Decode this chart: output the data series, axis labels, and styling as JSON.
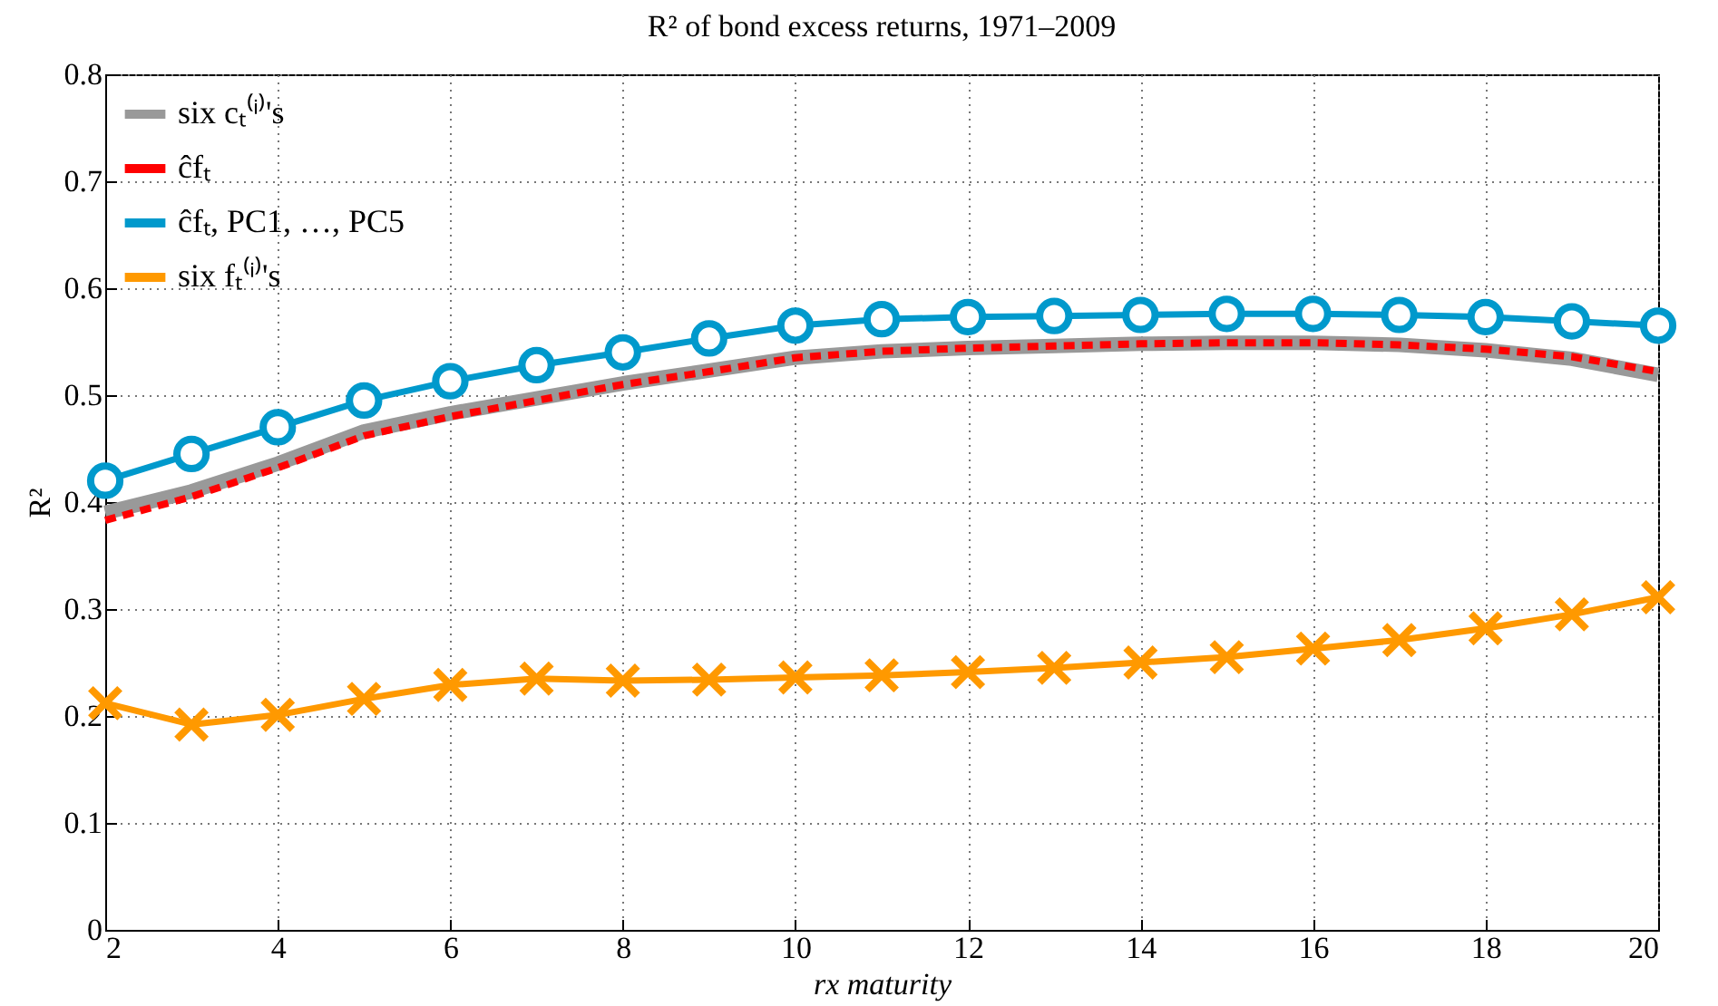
{
  "chart_data": {
    "type": "line",
    "title": "R² of bond excess returns, 1971–2009",
    "xlabel": "rx maturity",
    "ylabel": "R²",
    "x": [
      2,
      3,
      4,
      5,
      6,
      7,
      8,
      9,
      10,
      11,
      12,
      13,
      14,
      15,
      16,
      17,
      18,
      19,
      20
    ],
    "series": [
      {
        "name": "six cₜ⁽ⁱ⁾'s",
        "color": "#999999",
        "marker": "none",
        "line_style": "solid",
        "values": [
          0.39,
          0.41,
          0.436,
          0.466,
          0.483,
          0.497,
          0.511,
          0.523,
          0.535,
          0.541,
          0.544,
          0.546,
          0.548,
          0.549,
          0.549,
          0.547,
          0.542,
          0.534,
          0.519
        ]
      },
      {
        "name": "ĉfₜ",
        "color": "#ff0000",
        "marker": "none",
        "line_style": "dashed",
        "values": [
          0.383,
          0.405,
          0.432,
          0.462,
          0.48,
          0.495,
          0.51,
          0.522,
          0.535,
          0.541,
          0.544,
          0.546,
          0.548,
          0.549,
          0.549,
          0.547,
          0.543,
          0.536,
          0.522
        ]
      },
      {
        "name": "ĉfₜ, PC1, …, PC5",
        "color": "#0099cc",
        "marker": "circle",
        "line_style": "solid",
        "values": [
          0.42,
          0.445,
          0.47,
          0.495,
          0.513,
          0.528,
          0.54,
          0.553,
          0.565,
          0.571,
          0.573,
          0.574,
          0.575,
          0.576,
          0.576,
          0.575,
          0.573,
          0.569,
          0.565
        ]
      },
      {
        "name": "six fₜ⁽ⁱ⁾'s",
        "color": "#ff9900",
        "marker": "cross",
        "line_style": "solid",
        "values": [
          0.212,
          0.192,
          0.201,
          0.216,
          0.229,
          0.235,
          0.233,
          0.234,
          0.236,
          0.238,
          0.241,
          0.245,
          0.25,
          0.255,
          0.263,
          0.271,
          0.282,
          0.295,
          0.311
        ]
      }
    ],
    "xlim": [
      2,
      20
    ],
    "xticks": [
      2,
      4,
      6,
      8,
      10,
      12,
      14,
      16,
      18,
      20
    ],
    "ylim": [
      0,
      0.8
    ],
    "yticks": [
      0,
      0.1,
      0.2,
      0.3,
      0.4,
      0.5,
      0.6,
      0.7,
      0.8
    ],
    "grid": true,
    "legend": "top left"
  }
}
